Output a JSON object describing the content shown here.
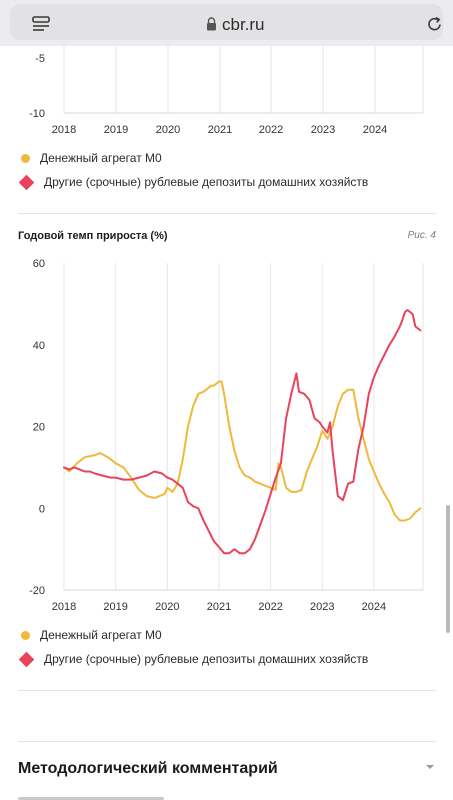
{
  "browser": {
    "url": "cbr.ru",
    "icons": {
      "menu": "tab-menu-icon",
      "lock": "lock-icon",
      "reload": "reload-icon"
    }
  },
  "chart_top": {
    "y_ticks": [
      "-5",
      "-10"
    ],
    "x_ticks": [
      "2018",
      "2019",
      "2020",
      "2021",
      "2022",
      "2023",
      "2024"
    ]
  },
  "legend_top": {
    "m0": "Денежный агрегат М0",
    "deposits": "Другие (срочные) рублевые депозиты домашних хозяйств"
  },
  "figure4": {
    "title": "Годовой темп прироста (%)",
    "label": "Рис. 4"
  },
  "legend_main": {
    "m0": "Денежный агрегат М0",
    "deposits": "Другие (срочные) рублевые депозиты домашних хозяйств"
  },
  "methodology": {
    "title": "Методологический комментарий",
    "icon": "chevron-down-icon"
  },
  "colors": {
    "m0": "#f0b93c",
    "deposits": "#e8435b",
    "grid": "#e6e6e6"
  },
  "chart_data": {
    "type": "line",
    "title": "Годовой темп прироста (%)",
    "xlabel": "",
    "ylabel": "",
    "x_ticks": [
      "2018",
      "2019",
      "2020",
      "2021",
      "2022",
      "2023",
      "2024"
    ],
    "y_ticks": [
      "60",
      "40",
      "20",
      "0",
      "-20"
    ],
    "xlim": [
      2018,
      2024.95
    ],
    "ylim": [
      -20,
      60
    ],
    "grid": "vertical",
    "legend": "bottom",
    "series": [
      {
        "name": "Денежный агрегат М0",
        "color": "#f0b93c",
        "x": [
          2018.0,
          2018.1,
          2018.25,
          2018.4,
          2018.6,
          2018.7,
          2018.85,
          2019.0,
          2019.15,
          2019.3,
          2019.45,
          2019.6,
          2019.75,
          2019.85,
          2019.95,
          2020.0,
          2020.1,
          2020.2,
          2020.3,
          2020.4,
          2020.5,
          2020.6,
          2020.7,
          2020.8,
          2020.85,
          2020.9,
          2021.0,
          2021.05,
          2021.1,
          2021.2,
          2021.3,
          2021.4,
          2021.5,
          2021.6,
          2021.7,
          2021.8,
          2021.9,
          2022.0,
          2022.1,
          2022.15,
          2022.2,
          2022.3,
          2022.4,
          2022.5,
          2022.6,
          2022.7,
          2022.8,
          2022.9,
          2023.0,
          2023.1,
          2023.2,
          2023.3,
          2023.4,
          2023.5,
          2023.6,
          2023.7,
          2023.8,
          2023.9,
          2024.0,
          2024.1,
          2024.2,
          2024.3,
          2024.4,
          2024.5,
          2024.6,
          2024.7,
          2024.8,
          2024.9
        ],
        "y": [
          10,
          9,
          11,
          12.5,
          13,
          13.5,
          12.5,
          11,
          10,
          7.5,
          4.5,
          3,
          2.5,
          3,
          3.5,
          5,
          4,
          6,
          12,
          20,
          25,
          28,
          28.5,
          29.5,
          30,
          30,
          31,
          31,
          28,
          20,
          14,
          10,
          8,
          7.5,
          6.5,
          6,
          5.5,
          5,
          4.5,
          11,
          10,
          5,
          4,
          4,
          4.5,
          9,
          12,
          15,
          19,
          17,
          20,
          25,
          28,
          29,
          29,
          22,
          17,
          12,
          9,
          6,
          3.5,
          1.5,
          -1.5,
          -3,
          -3,
          -2.5,
          -1,
          0
        ]
      },
      {
        "name": "Другие (срочные) рублевые депозиты домашних хозяйств",
        "color": "#e8435b",
        "x": [
          2018.0,
          2018.1,
          2018.2,
          2018.3,
          2018.4,
          2018.5,
          2018.6,
          2018.75,
          2018.9,
          2019.0,
          2019.15,
          2019.3,
          2019.45,
          2019.6,
          2019.75,
          2019.9,
          2020.0,
          2020.1,
          2020.2,
          2020.3,
          2020.4,
          2020.5,
          2020.6,
          2020.7,
          2020.8,
          2020.9,
          2021.0,
          2021.1,
          2021.2,
          2021.3,
          2021.4,
          2021.5,
          2021.6,
          2021.7,
          2021.8,
          2021.9,
          2022.0,
          2022.1,
          2022.2,
          2022.3,
          2022.4,
          2022.5,
          2022.55,
          2022.65,
          2022.75,
          2022.85,
          2022.95,
          2023.0,
          2023.1,
          2023.15,
          2023.2,
          2023.3,
          2023.4,
          2023.5,
          2023.6,
          2023.7,
          2023.8,
          2023.9,
          2024.0,
          2024.1,
          2024.2,
          2024.3,
          2024.4,
          2024.5,
          2024.55,
          2024.6,
          2024.65,
          2024.75,
          2024.8,
          2024.9
        ],
        "y": [
          10,
          9.5,
          10,
          9.5,
          9,
          9,
          8.5,
          8,
          7.5,
          7.5,
          7,
          7,
          7.5,
          8,
          9,
          8.5,
          7.5,
          7,
          6,
          5,
          1.5,
          0.5,
          0,
          -3,
          -5.5,
          -8,
          -9.5,
          -11,
          -11,
          -10,
          -11,
          -11,
          -10,
          -7.5,
          -4,
          -0.5,
          3.5,
          7.5,
          11,
          22,
          28,
          33,
          28.5,
          28,
          26.5,
          22,
          21,
          20,
          18.5,
          21,
          14,
          3,
          2,
          6,
          6.5,
          14.5,
          20,
          28,
          32,
          35,
          37.5,
          40,
          42,
          44.5,
          46,
          48,
          48.5,
          47.5,
          44.5,
          43.5
        ]
      }
    ]
  }
}
